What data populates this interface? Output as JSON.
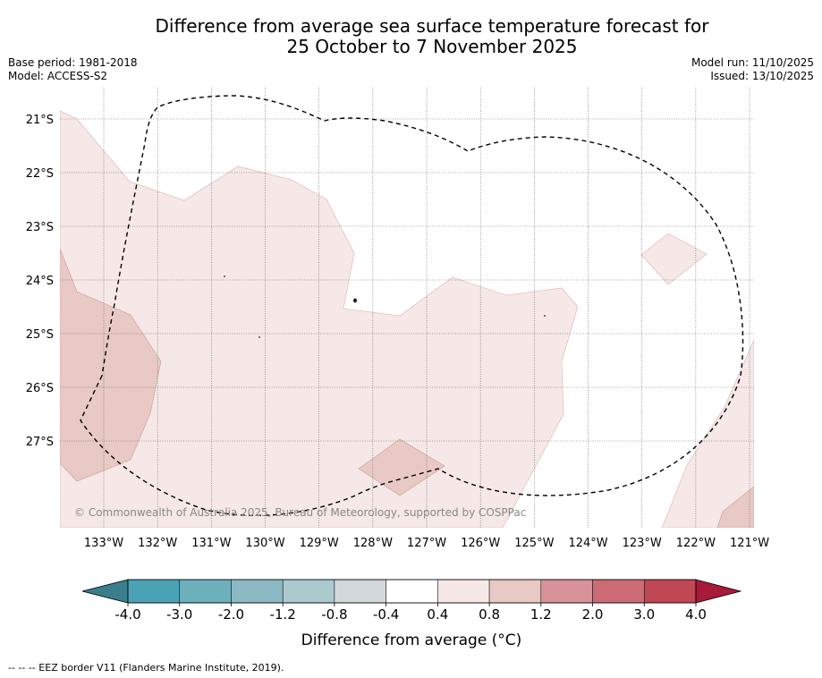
{
  "title": {
    "line1": "Difference from average sea surface temperature forecast for",
    "line2": "25 October to 7 November 2025"
  },
  "meta": {
    "base_period": "Base period: 1981-2018",
    "model": "Model: ACCESS-S2",
    "model_run": "Model run: 11/10/2025",
    "issued": "Issued: 13/10/2025"
  },
  "map": {
    "lat_labels": [
      "21°S",
      "22°S",
      "23°S",
      "24°S",
      "25°S",
      "26°S",
      "27°S"
    ],
    "lon_labels": [
      "133°W",
      "132°W",
      "131°W",
      "130°W",
      "129°W",
      "128°W",
      "127°W",
      "126°W",
      "125°W",
      "124°W",
      "123°W",
      "122°W",
      "121°W"
    ],
    "copyright": "© Commonwealth of Australia 2025, Bureau of Meteorology, supported by COSPPac"
  },
  "colorbar": {
    "title": "Difference from average (°C)",
    "tick_labels": [
      "-4.0",
      "-3.0",
      "-2.0",
      "-1.2",
      "-0.8",
      "-0.4",
      "0.4",
      "0.8",
      "1.2",
      "2.0",
      "3.0",
      "4.0"
    ],
    "colors": {
      "under": "#3a7e8c",
      "bins": [
        "#4aa3b5",
        "#6cafbd",
        "#8cb9c4",
        "#aacace",
        "#d3d8db",
        "#ffffff",
        "#f5e8e7",
        "#e8c9c5",
        "#d9919a",
        "#cc6b74",
        "#c04754"
      ],
      "over": "#a8193a"
    }
  },
  "footer": {
    "legend_line": "-- -- -- EEZ border V11 (Flanders Marine Institute, 2019)."
  }
}
